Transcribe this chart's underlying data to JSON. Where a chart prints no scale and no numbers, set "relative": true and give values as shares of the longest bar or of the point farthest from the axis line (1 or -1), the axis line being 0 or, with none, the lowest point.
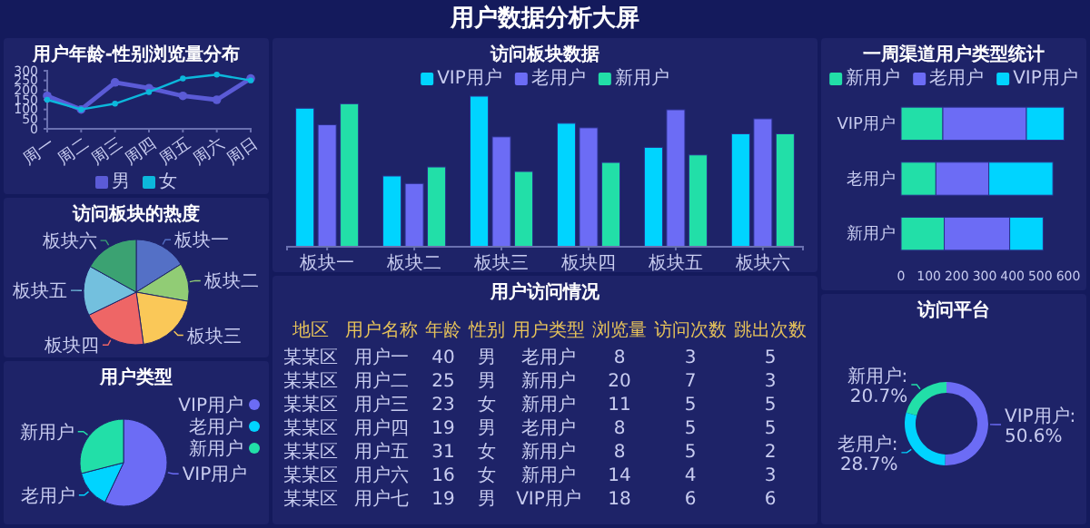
{
  "chart_data": [
    {
      "type": "other",
      "title": "用户数据分析大屏"
    },
    {
      "type": "line",
      "title": "用户年龄-性别浏览量分布",
      "categories": [
        "周一",
        "周二",
        "周三",
        "周四",
        "周五",
        "周六",
        "周日"
      ],
      "ylim": [
        0,
        300
      ],
      "yticks": [
        0,
        50,
        100,
        150,
        200,
        250,
        300
      ],
      "marker": "circle",
      "legend": "bottom",
      "series": [
        {
          "name": "男",
          "color": "#5b5bd6",
          "values": [
            170,
            100,
            240,
            210,
            170,
            150,
            260
          ]
        },
        {
          "name": "女",
          "color": "#0cb8dc",
          "values": [
            150,
            100,
            130,
            190,
            260,
            280,
            250
          ]
        }
      ]
    },
    {
      "type": "pie",
      "title": "访问板块的热度",
      "categories": [
        "板块一",
        "板块二",
        "板块三",
        "板块四",
        "板块五",
        "板块六"
      ],
      "values": [
        16.1,
        11.7,
        20,
        20,
        15.3,
        16.9
      ],
      "colors": [
        "#5470c6",
        "#91cc75",
        "#fac858",
        "#ee6666",
        "#73c0de",
        "#3ba272"
      ]
    },
    {
      "type": "pie",
      "title": "用户类型",
      "categories": [
        "VIP用户",
        "老用户",
        "新用户"
      ],
      "values": [
        57,
        14,
        29
      ],
      "colors": [
        "#6c6cf5",
        "#00d4ff",
        "#22dfa8"
      ],
      "legend": "right"
    },
    {
      "type": "bar",
      "title": "访问板块数据",
      "categories": [
        "板块一",
        "板块二",
        "板块三",
        "板块四",
        "板块五",
        "板块六"
      ],
      "relative": true,
      "legend": "top",
      "series": [
        {
          "name": "VIP用户",
          "color": "#00d4ff",
          "values": [
            0.92,
            0.47,
            1,
            0.82,
            0.66,
            0.75
          ]
        },
        {
          "name": "老用户",
          "color": "#6c6cf5",
          "values": [
            0.81,
            0.42,
            0.73,
            0.79,
            0.91,
            0.85
          ]
        },
        {
          "name": "新用户",
          "color": "#22dfa8",
          "values": [
            0.95,
            0.53,
            0.5,
            0.56,
            0.61,
            0.75
          ]
        }
      ]
    },
    {
      "type": "other",
      "title": "用户访问情况",
      "categories": [
        "地区",
        "用户名称",
        "年龄",
        "性别",
        "用户类型",
        "浏览量",
        "访问次数",
        "跳出次数"
      ],
      "cell_labels": [
        [
          "某某区",
          "用户一",
          "40",
          "男",
          "老用户",
          "8",
          "3",
          "5"
        ],
        [
          "某某区",
          "用户二",
          "25",
          "男",
          "新用户",
          "20",
          "7",
          "3"
        ],
        [
          "某某区",
          "用户三",
          "23",
          "女",
          "新用户",
          "11",
          "5",
          "5"
        ],
        [
          "某某区",
          "用户四",
          "19",
          "男",
          "老用户",
          "8",
          "5",
          "5"
        ],
        [
          "某某区",
          "用户五",
          "31",
          "女",
          "新用户",
          "8",
          "5",
          "2"
        ],
        [
          "某某区",
          "用户六",
          "16",
          "女",
          "新用户",
          "14",
          "4",
          "3"
        ],
        [
          "某某区",
          "用户七",
          "19",
          "男",
          "VIP用户",
          "18",
          "6",
          "6"
        ]
      ]
    },
    {
      "type": "bar",
      "title": "一周渠道用户类型统计",
      "orientation": "horizontal",
      "stacked": true,
      "categories": [
        "VIP用户",
        "老用户",
        "新用户"
      ],
      "xlim": [
        0,
        600
      ],
      "xticks": [
        0,
        100,
        200,
        300,
        400,
        500,
        600
      ],
      "legend": "top",
      "series": [
        {
          "name": "新用户",
          "color": "#22dfa8",
          "values": [
            150,
            125,
            155
          ]
        },
        {
          "name": "老用户",
          "color": "#6c6cf5",
          "values": [
            300,
            190,
            235
          ]
        },
        {
          "name": "VIP用户",
          "color": "#00d4ff",
          "values": [
            135,
            230,
            120
          ]
        }
      ]
    },
    {
      "type": "donut",
      "title": "访问平台",
      "values": [
        50.6,
        28.7,
        20.7
      ],
      "colors": [
        "#6c6cf5",
        "#00d4ff",
        "#22dfa8"
      ],
      "value_labels": [
        "VIP用户: 50.6%",
        "老用户: 28.7%",
        "新用户: 20.7%"
      ]
    }
  ]
}
